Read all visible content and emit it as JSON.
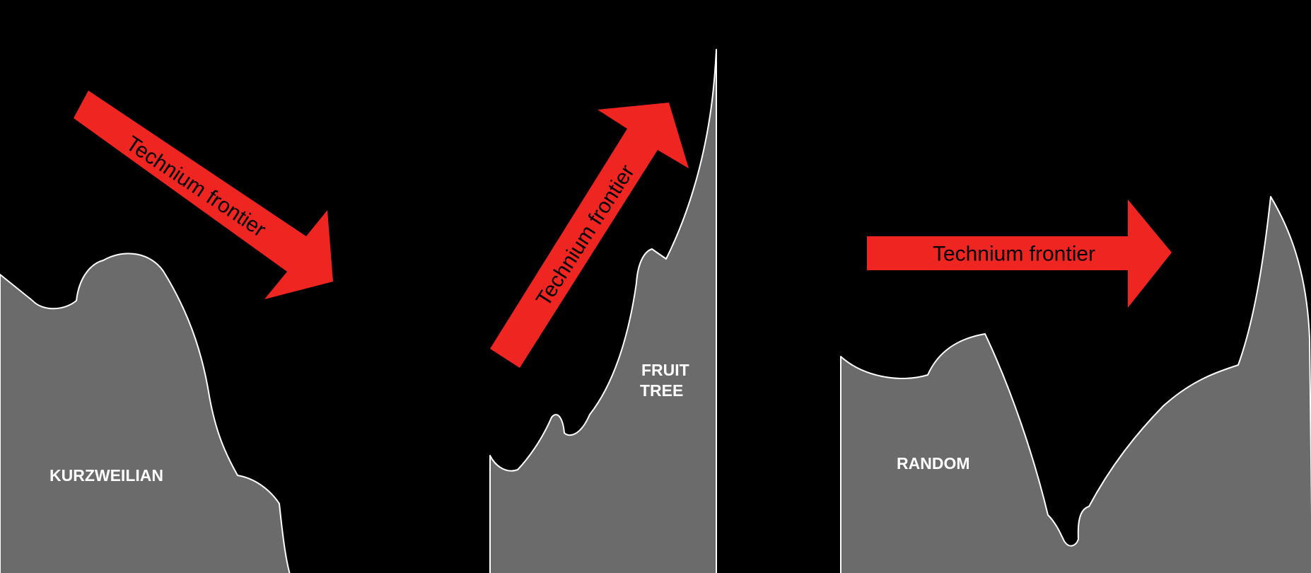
{
  "colors": {
    "background": "#000000",
    "terrain_fill": "#6b6b6b",
    "terrain_stroke": "#ffffff",
    "arrow": "#ee2520",
    "arrow_text": "#000000",
    "label_text": "#ffffff"
  },
  "panels": [
    {
      "label_lines": [
        "KURZWEILIAN"
      ],
      "arrow_text": "Technium frontier",
      "arrow_direction": "down-right"
    },
    {
      "label_lines": [
        "FRUIT",
        "TREE"
      ],
      "arrow_text": "Technium frontier",
      "arrow_direction": "up-right"
    },
    {
      "label_lines": [
        "RANDOM"
      ],
      "arrow_text": "Technium frontier",
      "arrow_direction": "right"
    }
  ]
}
